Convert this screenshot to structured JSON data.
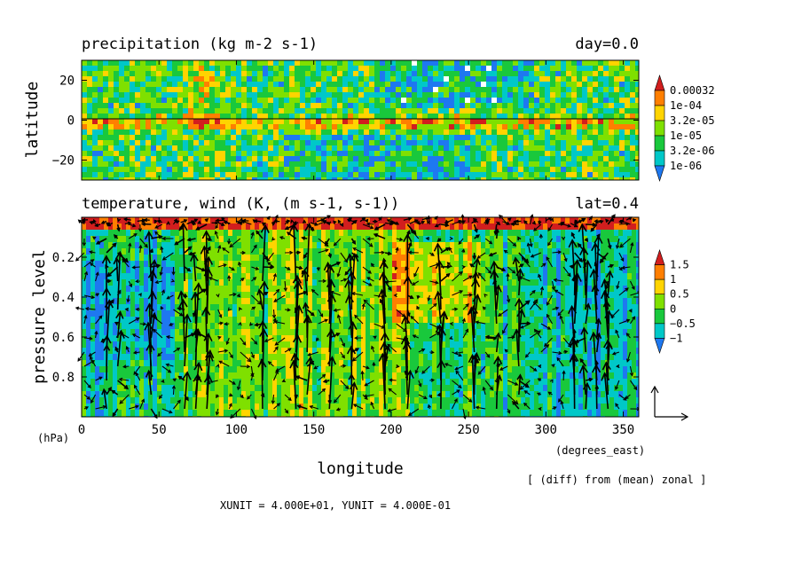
{
  "chart_data": [
    {
      "type": "heatmap",
      "title": "precipitation (kg m-2 s-1)",
      "title_right": "day=0.0",
      "ylabel": "latitude",
      "xlim": [
        0,
        360
      ],
      "ylim": [
        -30,
        30
      ],
      "yticks": [
        20,
        0,
        -20
      ],
      "ytick_labels": [
        "20",
        "0",
        "−20"
      ],
      "reference_line": 0,
      "colorbar": {
        "labels": [
          "0.00032",
          "1e-04",
          "3.2e-05",
          "1e-05",
          "3.2e-06",
          "1e-06"
        ],
        "colors": [
          "#d21e1e",
          "#ff7f00",
          "#ffd400",
          "#7fe000",
          "#19c83c",
          "#00c8c8",
          "#1e78f0"
        ]
      },
      "colors": [
        "#ffffff",
        "#1e78f0",
        "#00c8c8",
        "#19c83c",
        "#7fe000",
        "#ffd400",
        "#ff7f00",
        "#d21e1e"
      ]
    },
    {
      "type": "heatmap",
      "title": "temperature, wind (K, (m s-1, s-1))",
      "title_right": "lat=0.4",
      "xlabel": "longitude",
      "ylabel": "pressure level",
      "xunit": "(degrees_east)",
      "yunit": "(hPa)",
      "xlim": [
        0,
        360
      ],
      "ylim": [
        1,
        0
      ],
      "xticks": [
        0,
        50,
        100,
        150,
        200,
        250,
        300,
        350
      ],
      "xtick_labels": [
        "0",
        "50",
        "100",
        "150",
        "200",
        "250",
        "300",
        "350"
      ],
      "yticks": [
        0.2,
        0.4,
        0.6,
        0.8
      ],
      "ytick_labels": [
        "0.2",
        "0.4",
        "0.6",
        "0.8"
      ],
      "colorbar": {
        "labels": [
          "1.5",
          "1",
          "0.5",
          "0",
          "−0.5",
          "−1"
        ],
        "colors": [
          "#d21e1e",
          "#ff7f00",
          "#ffd400",
          "#7fe000",
          "#19c83c",
          "#00c8c8",
          "#1e78f0"
        ]
      },
      "overlay": "wind vectors",
      "note": "[ (diff) from (mean) zonal ]",
      "vector_units": "XUNIT = 4.000E+01, YUNIT = 4.000E-01"
    }
  ]
}
